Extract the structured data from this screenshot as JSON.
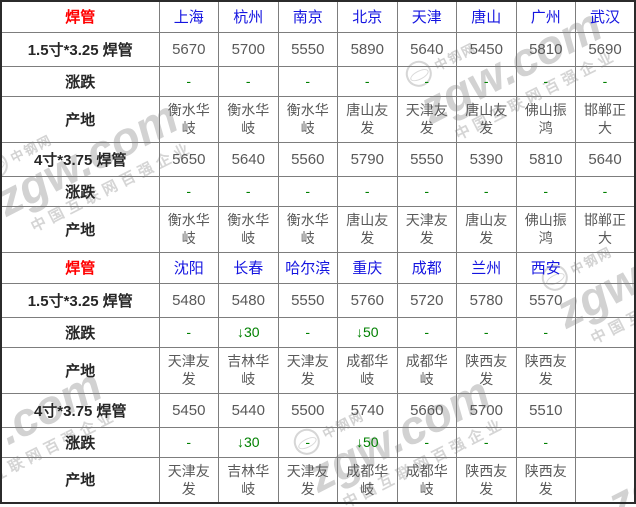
{
  "watermark": {
    "stamp": "中钢网",
    "brand": "zgw.com",
    "slogan": "中国互联网百强企业"
  },
  "colors": {
    "section_header_red": "#ff0000",
    "city_link_blue": "#1414e0",
    "value_gray": "#595959",
    "label_dark": "#262626",
    "change_green": "#008000",
    "border_inner": "#7d7d7d",
    "border_outer": "#2b2b2b",
    "watermark_gray": "#d2d2d2"
  },
  "chart_data": {
    "type": "table",
    "title": "焊管价格表",
    "sections": [
      {
        "product": "焊管",
        "columns": [
          "上海",
          "杭州",
          "南京",
          "北京",
          "天津",
          "唐山",
          "广州",
          "武汉"
        ],
        "rows": [
          {
            "label": "1.5寸*3.25 焊管",
            "type": "price",
            "values": [
              5670,
              5700,
              5550,
              5890,
              5640,
              5450,
              5810,
              5690
            ]
          },
          {
            "label": "涨跌",
            "type": "change",
            "values": [
              "-",
              "-",
              "-",
              "-",
              "-",
              "-",
              "-",
              "-"
            ]
          },
          {
            "label": "产地",
            "type": "origin",
            "values": [
              "衡水华岐",
              "衡水华岐",
              "衡水华岐",
              "唐山友发",
              "天津友发",
              "唐山友发",
              "佛山振鸿",
              "邯郸正大"
            ]
          },
          {
            "label": "4寸*3.75 焊管",
            "type": "price",
            "values": [
              5650,
              5640,
              5560,
              5790,
              5550,
              5390,
              5810,
              5640
            ]
          },
          {
            "label": "涨跌",
            "type": "change",
            "values": [
              "-",
              "-",
              "-",
              "-",
              "-",
              "-",
              "-",
              "-"
            ]
          },
          {
            "label": "产地",
            "type": "origin",
            "values": [
              "衡水华岐",
              "衡水华岐",
              "衡水华岐",
              "唐山友发",
              "天津友发",
              "唐山友发",
              "佛山振鸿",
              "邯郸正大"
            ]
          }
        ]
      },
      {
        "product": "焊管",
        "columns": [
          "沈阳",
          "长春",
          "哈尔滨",
          "重庆",
          "成都",
          "兰州",
          "西安",
          ""
        ],
        "rows": [
          {
            "label": "1.5寸*3.25 焊管",
            "type": "price",
            "values": [
              5480,
              5480,
              5550,
              5760,
              5720,
              5780,
              5570,
              ""
            ]
          },
          {
            "label": "涨跌",
            "type": "change",
            "values": [
              "-",
              "↓30",
              "-",
              "↓50",
              "-",
              "-",
              "-",
              ""
            ]
          },
          {
            "label": "产地",
            "type": "origin",
            "values": [
              "天津友发",
              "吉林华岐",
              "天津友发",
              "成都华岐",
              "成都华岐",
              "陕西友发",
              "陕西友发",
              ""
            ]
          },
          {
            "label": "4寸*3.75 焊管",
            "type": "price",
            "values": [
              5450,
              5440,
              5500,
              5740,
              5660,
              5700,
              5510,
              ""
            ]
          },
          {
            "label": "涨跌",
            "type": "change",
            "values": [
              "-",
              "↓30",
              "-",
              "↓50",
              "-",
              "-",
              "-",
              ""
            ]
          },
          {
            "label": "产地",
            "type": "origin",
            "values": [
              "天津友发",
              "吉林华岐",
              "天津友发",
              "成都华岐",
              "成都华岐",
              "陕西友发",
              "陕西友发",
              ""
            ]
          }
        ]
      }
    ]
  }
}
